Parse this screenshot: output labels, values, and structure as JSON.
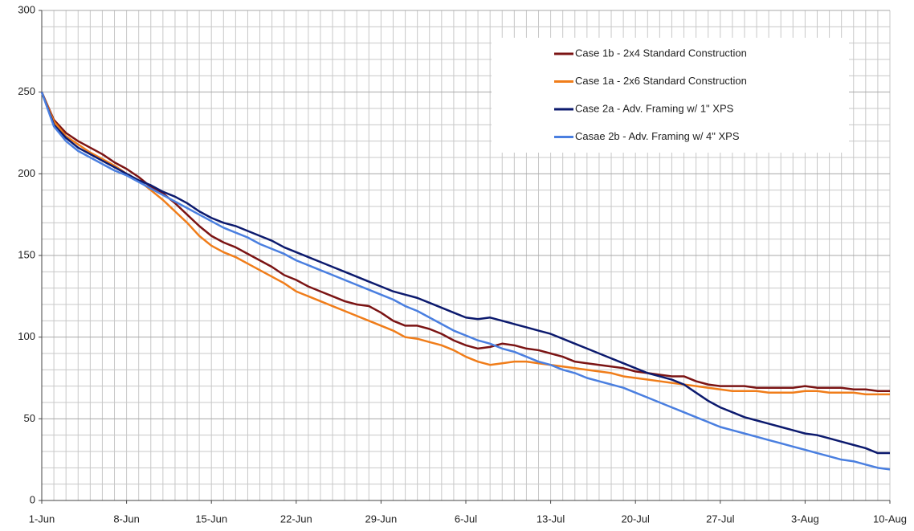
{
  "chart_data": {
    "type": "line",
    "categories": [
      "1-Jun",
      null,
      null,
      null,
      null,
      null,
      null,
      "8-Jun",
      null,
      null,
      null,
      null,
      null,
      null,
      "15-Jun",
      null,
      null,
      null,
      null,
      null,
      null,
      "22-Jun",
      null,
      null,
      null,
      null,
      null,
      null,
      "29-Jun",
      null,
      null,
      null,
      null,
      null,
      null,
      "6-Jul",
      null,
      null,
      null,
      null,
      null,
      null,
      "13-Jul",
      null,
      null,
      null,
      null,
      null,
      null,
      "20-Jul",
      null,
      null,
      null,
      null,
      null,
      null,
      "27-Jul",
      null,
      null,
      null,
      null,
      null,
      null,
      "3-Aug",
      null,
      null,
      null,
      null,
      null,
      null,
      "10-Aug"
    ],
    "series": [
      {
        "name": "Case 1b - 2x4 Standard Construction",
        "color": "#7b1414",
        "values": [
          250,
          233,
          225,
          220,
          216,
          212,
          207,
          203,
          198,
          192,
          188,
          182,
          175,
          168,
          162,
          158,
          155,
          151,
          147,
          143,
          138,
          135,
          131,
          128,
          125,
          122,
          120,
          119,
          115,
          110,
          107,
          107,
          105,
          102,
          98,
          95,
          93,
          94,
          96,
          95,
          93,
          92,
          90,
          88,
          85,
          84,
          83,
          82,
          81,
          79,
          78,
          77,
          76,
          76,
          73,
          71,
          70,
          70,
          70,
          69,
          69,
          69,
          69,
          70,
          69,
          69,
          69,
          68,
          68,
          67,
          67
        ]
      },
      {
        "name": "Case 1a - 2x6 Standard Construction",
        "color": "#f07d1a",
        "values": [
          250,
          232,
          223,
          218,
          213,
          209,
          205,
          200,
          196,
          190,
          184,
          177,
          170,
          162,
          156,
          152,
          149,
          145,
          141,
          137,
          133,
          128,
          125,
          122,
          119,
          116,
          113,
          110,
          107,
          104,
          100,
          99,
          97,
          95,
          92,
          88,
          85,
          83,
          84,
          85,
          85,
          84,
          83,
          82,
          81,
          80,
          79,
          78,
          76,
          75,
          74,
          73,
          72,
          71,
          70,
          69,
          68,
          67,
          67,
          67,
          66,
          66,
          66,
          67,
          67,
          66,
          66,
          66,
          65,
          65,
          65
        ]
      },
      {
        "name": "Case 2a - Adv. Framing w/ 1\" XPS",
        "color": "#0c1a6e",
        "values": [
          250,
          230,
          222,
          216,
          212,
          208,
          204,
          200,
          196,
          193,
          189,
          186,
          182,
          177,
          173,
          170,
          168,
          165,
          162,
          159,
          155,
          152,
          149,
          146,
          143,
          140,
          137,
          134,
          131,
          128,
          126,
          124,
          121,
          118,
          115,
          112,
          111,
          112,
          110,
          108,
          106,
          104,
          102,
          99,
          96,
          93,
          90,
          87,
          84,
          81,
          78,
          76,
          74,
          71,
          66,
          61,
          57,
          54,
          51,
          49,
          47,
          45,
          43,
          41,
          40,
          38,
          36,
          34,
          32,
          29,
          29
        ]
      },
      {
        "name": "Casae 2b - Adv. Framing w/ 4\" XPS",
        "color": "#4a7fe0",
        "values": [
          250,
          229,
          220,
          214,
          210,
          206,
          202,
          199,
          195,
          191,
          187,
          183,
          179,
          175,
          171,
          167,
          164,
          161,
          157,
          154,
          151,
          147,
          144,
          141,
          138,
          135,
          132,
          129,
          126,
          123,
          119,
          116,
          112,
          108,
          104,
          101,
          98,
          96,
          93,
          91,
          88,
          85,
          83,
          80,
          78,
          75,
          73,
          71,
          69,
          66,
          63,
          60,
          57,
          54,
          51,
          48,
          45,
          43,
          41,
          39,
          37,
          35,
          33,
          31,
          29,
          27,
          25,
          24,
          22,
          20,
          19
        ]
      }
    ],
    "ylim": [
      0,
      300
    ],
    "yticks": [
      0,
      50,
      100,
      150,
      200,
      250,
      300
    ],
    "grid": true,
    "legend": "upper right"
  }
}
